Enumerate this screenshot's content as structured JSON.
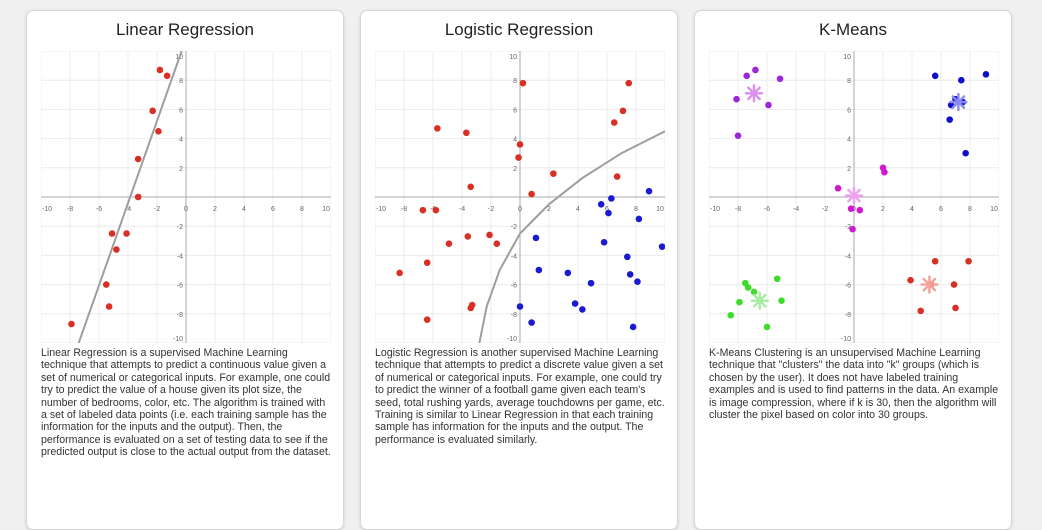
{
  "cards": [
    {
      "title": "Linear Regression",
      "description": "Linear Regression is a supervised Machine Learning technique that attempts to predict a continuous value given a set of numerical or categorical inputs. For example, one could try to predict the value of a house given its plot size, the number of bedrooms, color, etc. The algorithm is trained with a set of labeled data points (i.e. each training sample has the information for the inputs and the output). Then, the performance is evaluated on a set of testing data to see if the predicted output is close to the actual output from the dataset."
    },
    {
      "title": "Logistic Regression",
      "description": "Logistic Regression is another supervised Machine Learning technique that attempts to predict a discrete value given a set of numerical or categorical inputs. For example, one could try to predict the winner of a football game given each team's seed, total rushing yards, average touchdowns per game, etc. Training is similar to Linear Regression in that each training sample has information for the inputs and the output. The performance is evaluated similarly."
    },
    {
      "title": "K-Means",
      "description": "K-Means Clustering is an unsupervised Machine Learning technique that \"clusters\" the data into \"k\" groups (which is chosen by the user). It does not have labeled training examples and is used to find patterns in the data. An example is image compression, where if k is 30, then the algorithm will cluster the pixel based on color into 30 groups."
    }
  ],
  "chart_data": [
    {
      "type": "scatter",
      "xlim": [
        -10,
        10
      ],
      "ylim": [
        -10,
        10
      ],
      "xticks": [
        -10,
        -8,
        -6,
        -4,
        -2,
        0,
        2,
        4,
        6,
        8,
        10
      ],
      "yticks": [
        -10,
        -8,
        -6,
        -4,
        -2,
        0,
        2,
        4,
        6,
        8,
        10
      ],
      "grid": true,
      "colors": {
        "point": "#d93025",
        "line": "#9e9e9e"
      },
      "series": [
        {
          "points": [
            [
              -7.9,
              -8.7
            ],
            [
              -5.3,
              -7.5
            ],
            [
              -5.5,
              -6.0
            ],
            [
              -4.8,
              -3.6
            ],
            [
              -5.1,
              -2.5
            ],
            [
              -4.1,
              -2.5
            ],
            [
              -3.3,
              0.0
            ],
            [
              -3.3,
              2.6
            ],
            [
              -2.3,
              5.9
            ],
            [
              -1.9,
              4.5
            ],
            [
              -1.8,
              8.7
            ],
            [
              -1.3,
              8.3
            ]
          ]
        }
      ],
      "fit_line": [
        [
          -7.4,
          -10
        ],
        [
          -0.3,
          10
        ]
      ]
    },
    {
      "type": "scatter",
      "xlim": [
        -10,
        10
      ],
      "ylim": [
        -10,
        10
      ],
      "xticks": [
        -10,
        -8,
        -6,
        -4,
        -2,
        0,
        2,
        4,
        6,
        8,
        10
      ],
      "yticks": [
        -10,
        -8,
        -6,
        -4,
        -2,
        0,
        2,
        4,
        6,
        8,
        10
      ],
      "grid": true,
      "colors": {
        "class_a": "#d93025",
        "class_b": "#1a1ad0",
        "boundary": "#9e9e9e"
      },
      "series": [
        {
          "color": "class_a",
          "points": [
            [
              0.2,
              7.8
            ],
            [
              7.5,
              7.8
            ],
            [
              7.1,
              5.9
            ],
            [
              6.5,
              5.1
            ],
            [
              -5.7,
              4.7
            ],
            [
              -3.7,
              4.4
            ],
            [
              0.0,
              3.6
            ],
            [
              -0.1,
              2.7
            ],
            [
              2.3,
              1.6
            ],
            [
              -3.4,
              0.7
            ],
            [
              0.8,
              0.2
            ],
            [
              6.7,
              1.4
            ],
            [
              -6.7,
              -0.9
            ],
            [
              -5.8,
              -0.9
            ],
            [
              -3.6,
              -2.7
            ],
            [
              -4.9,
              -3.2
            ],
            [
              -2.1,
              -2.6
            ],
            [
              -1.6,
              -3.2
            ],
            [
              -6.4,
              -4.5
            ],
            [
              -8.3,
              -5.2
            ],
            [
              -3.3,
              -7.4
            ],
            [
              -3.4,
              -7.6
            ],
            [
              -6.4,
              -8.4
            ]
          ]
        },
        {
          "color": "class_b",
          "points": [
            [
              8.9,
              0.4
            ],
            [
              6.3,
              -0.1
            ],
            [
              5.6,
              -0.5
            ],
            [
              6.1,
              -1.1
            ],
            [
              8.2,
              -1.5
            ],
            [
              1.1,
              -2.8
            ],
            [
              5.8,
              -3.1
            ],
            [
              9.8,
              -3.4
            ],
            [
              7.4,
              -4.1
            ],
            [
              1.3,
              -5.0
            ],
            [
              3.3,
              -5.2
            ],
            [
              7.6,
              -5.3
            ],
            [
              8.1,
              -5.8
            ],
            [
              4.9,
              -5.9
            ],
            [
              3.8,
              -7.3
            ],
            [
              4.3,
              -7.7
            ],
            [
              0.0,
              -7.5
            ],
            [
              0.8,
              -8.6
            ],
            [
              7.8,
              -8.9
            ]
          ]
        }
      ],
      "boundary_curve": [
        [
          -2.8,
          -10
        ],
        [
          -2.3,
          -7.5
        ],
        [
          -1.4,
          -5.0
        ],
        [
          0.0,
          -2.5
        ],
        [
          2.0,
          -0.5
        ],
        [
          4.3,
          1.3
        ],
        [
          7.0,
          3.0
        ],
        [
          10.0,
          4.5
        ]
      ]
    },
    {
      "type": "scatter",
      "xlim": [
        -10,
        10
      ],
      "ylim": [
        -10,
        10
      ],
      "xticks": [
        -10,
        -8,
        -6,
        -4,
        -2,
        0,
        2,
        4,
        6,
        8,
        10
      ],
      "yticks": [
        -10,
        -8,
        -6,
        -4,
        -2,
        0,
        2,
        4,
        6,
        8,
        10
      ],
      "grid": true,
      "series": [
        {
          "color": "#9b27d8",
          "centroid_color": "#d98ff0",
          "centroid": [
            -6.9,
            7.1
          ],
          "points": [
            [
              -6.8,
              8.7
            ],
            [
              -7.4,
              8.3
            ],
            [
              -5.1,
              8.1
            ],
            [
              -8.1,
              6.7
            ],
            [
              -5.9,
              6.3
            ],
            [
              -8.0,
              4.2
            ]
          ]
        },
        {
          "color": "#1010c8",
          "centroid_color": "#8a8af0",
          "centroid": [
            7.2,
            6.5
          ],
          "points": [
            [
              5.6,
              8.3
            ],
            [
              7.4,
              8.0
            ],
            [
              9.1,
              8.4
            ],
            [
              6.7,
              6.3
            ],
            [
              7.0,
              6.7
            ],
            [
              7.5,
              6.5
            ],
            [
              6.6,
              5.3
            ],
            [
              7.7,
              3.0
            ]
          ]
        },
        {
          "color": "#d018d0",
          "centroid_color": "#f0a0f0",
          "centroid": [
            0.0,
            0.1
          ],
          "points": [
            [
              2.0,
              2.0
            ],
            [
              2.1,
              1.7
            ],
            [
              -1.1,
              0.6
            ],
            [
              -0.2,
              -0.8
            ],
            [
              0.4,
              -0.9
            ],
            [
              -0.1,
              -2.2
            ]
          ]
        },
        {
          "color": "#d93025",
          "centroid_color": "#f5a09a",
          "centroid": [
            5.2,
            -6.0
          ],
          "points": [
            [
              5.6,
              -4.4
            ],
            [
              7.9,
              -4.4
            ],
            [
              3.9,
              -5.7
            ],
            [
              5.3,
              -6.0
            ],
            [
              6.9,
              -6.0
            ],
            [
              7.0,
              -7.6
            ],
            [
              4.6,
              -7.8
            ]
          ]
        },
        {
          "color": "#3ddc2c",
          "centroid_color": "#a6eca0",
          "centroid": [
            -6.5,
            -7.1
          ],
          "points": [
            [
              -5.3,
              -5.6
            ],
            [
              -7.5,
              -5.9
            ],
            [
              -7.3,
              -6.2
            ],
            [
              -6.9,
              -6.5
            ],
            [
              -7.9,
              -7.2
            ],
            [
              -5.0,
              -7.1
            ],
            [
              -8.5,
              -8.1
            ],
            [
              -6.0,
              -8.9
            ]
          ]
        }
      ]
    }
  ]
}
